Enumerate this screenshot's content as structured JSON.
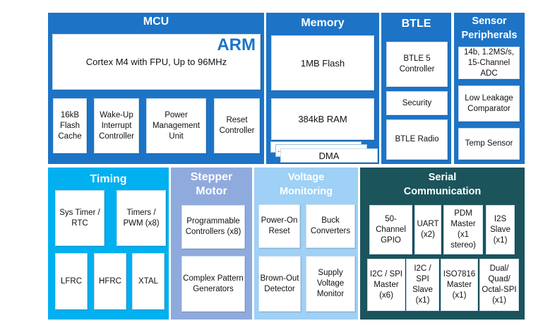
{
  "colors": {
    "mcu": "#1d74c6",
    "timing": "#00b0f0",
    "stepper": "#8faadc",
    "voltage": "#9fd0f5",
    "serial": "#1c545c"
  },
  "mcu": {
    "title": "MCU",
    "core": "Cortex M4 with FPU, Up to 96MHz",
    "logo": "ARM",
    "blocks": [
      "16kB Flash Cache",
      "Wake-Up Interrupt Controller",
      "Power Management Unit",
      "Reset Controller"
    ]
  },
  "memory": {
    "title": "Memory",
    "blocks": [
      "1MB Flash",
      "384kB RAM"
    ],
    "dma": "DMA",
    "dma_ellipsis": "..."
  },
  "btle": {
    "title": "BTLE",
    "blocks": [
      "BTLE 5 Controller",
      "Security",
      "BTLE Radio"
    ]
  },
  "sensor": {
    "title": "Sensor Peripherals",
    "blocks": [
      "14b, 1.2MS/s, 15-Channel ADC",
      "Low Leakage Comparator",
      "Temp Sensor"
    ]
  },
  "timing": {
    "title": "Timing",
    "blocks": [
      "Sys Timer / RTC",
      "Timers / PWM (x8)",
      "LFRC",
      "HFRC",
      "XTAL"
    ]
  },
  "stepper": {
    "title": "Stepper Motor",
    "blocks": [
      "Programmable Controllers (x8)",
      "Complex Pattern Generators"
    ]
  },
  "voltage": {
    "title": "Voltage Monitoring",
    "blocks": [
      "Power-On Reset",
      "Buck Converters",
      "Brown-Out Detector",
      "Supply Voltage Monitor"
    ]
  },
  "serial": {
    "title": "Serial Communication",
    "blocks": [
      "50-Channel GPIO",
      "UART (x2)",
      "PDM Master (x1 stereo)",
      "I2S Slave (x1)",
      "I2C / SPI Master (x6)",
      "I2C / SPI Slave (x1)",
      "ISO7816 Master (x1)",
      "Dual/ Quad/ Octal-SPI (x1)"
    ]
  }
}
